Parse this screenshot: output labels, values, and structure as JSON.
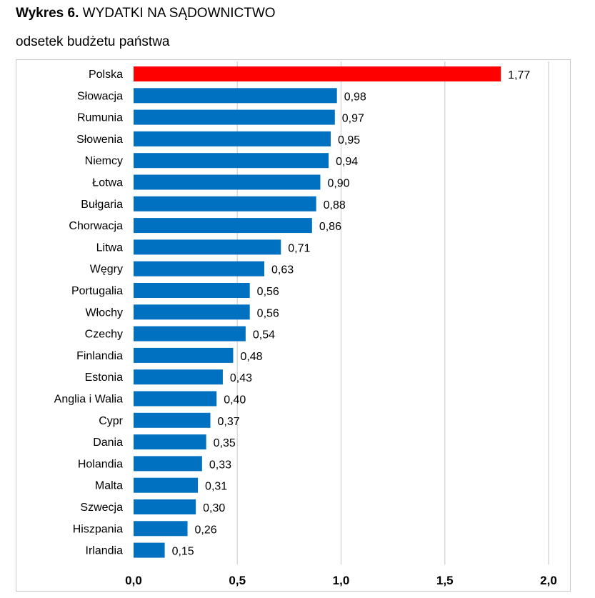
{
  "header": {
    "title_bold": "Wykres 6.",
    "title_rest": "WYDATKI NA SĄDOWNICTWO",
    "subtitle": "odsetek budżetu państwa"
  },
  "chart_data": {
    "type": "bar",
    "orientation": "horizontal",
    "categories": [
      "Polska",
      "Słowacja",
      "Rumunia",
      "Słowenia",
      "Niemcy",
      "Łotwa",
      "Bułgaria",
      "Chorwacja",
      "Litwa",
      "Węgry",
      "Portugalia",
      "Włochy",
      "Czechy",
      "Finlandia",
      "Estonia",
      "Anglia i Walia",
      "Cypr",
      "Dania",
      "Holandia",
      "Malta",
      "Szwecja",
      "Hiszpania",
      "Irlandia"
    ],
    "values": [
      1.77,
      0.98,
      0.97,
      0.95,
      0.94,
      0.9,
      0.88,
      0.86,
      0.71,
      0.63,
      0.56,
      0.56,
      0.54,
      0.48,
      0.43,
      0.4,
      0.37,
      0.35,
      0.33,
      0.31,
      0.3,
      0.26,
      0.15
    ],
    "value_labels": [
      "1,77",
      "0,98",
      "0,97",
      "0,95",
      "0,94",
      "0,90",
      "0,88",
      "0,86",
      "0,71",
      "0,63",
      "0,56",
      "0,56",
      "0,54",
      "0,48",
      "0,43",
      "0,40",
      "0,37",
      "0,35",
      "0,33",
      "0,31",
      "0,30",
      "0,26",
      "0,15"
    ],
    "xlim": [
      0,
      2.0
    ],
    "xticks": [
      0,
      0.5,
      1.0,
      1.5,
      2.0
    ],
    "xtick_labels": [
      "0,0",
      "0,5",
      "1,0",
      "1,5",
      "2,0"
    ],
    "grid": true,
    "colors": {
      "highlight": "#ff0000",
      "default": "#0070c0",
      "grid": "#d9d9d9"
    },
    "highlight_index": 0
  }
}
